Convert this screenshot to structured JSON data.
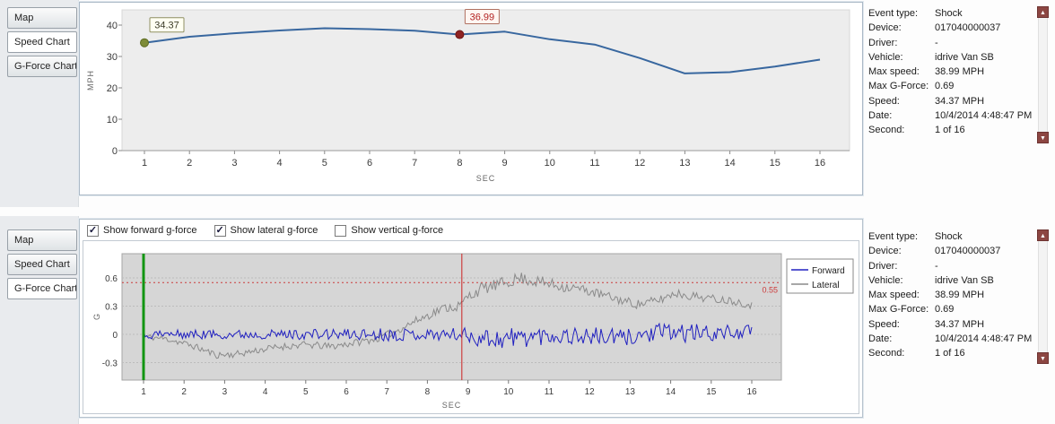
{
  "icons": {
    "up": "▲",
    "down": "▼",
    "check": "✓"
  },
  "tabs": {
    "map": "Map",
    "speed": "Speed Chart",
    "gforce": "G-Force Chart"
  },
  "checkboxes": {
    "forward": {
      "label": "Show forward g-force",
      "checked": true
    },
    "lateral": {
      "label": "Show lateral g-force",
      "checked": true
    },
    "vertical": {
      "label": "Show vertical g-force",
      "checked": false
    }
  },
  "info": {
    "rows": [
      {
        "label": "Event type:",
        "value": "Shock"
      },
      {
        "label": "Device:",
        "value": "017040000037"
      },
      {
        "label": "Driver:",
        "value": "-"
      },
      {
        "label": "Vehicle:",
        "value": "idrive Van SB"
      },
      {
        "label": "Max speed:",
        "value": "38.99 MPH"
      },
      {
        "label": "Max G-Force:",
        "value": "0.69"
      },
      {
        "label": "Speed:",
        "value": "34.37 MPH"
      },
      {
        "label": "Date:",
        "value": "10/4/2014 4:48:47 PM"
      },
      {
        "label": "Second:",
        "value": "1 of 16"
      }
    ]
  },
  "chart_data": [
    {
      "type": "line",
      "title": "Speed Chart",
      "xlabel": "SEC",
      "ylabel": "MPH",
      "x": [
        1,
        2,
        3,
        4,
        5,
        6,
        7,
        8,
        9,
        10,
        11,
        12,
        13,
        14,
        15,
        16
      ],
      "values": [
        34.37,
        36.3,
        37.4,
        38.3,
        38.99,
        38.7,
        38.2,
        36.99,
        37.9,
        35.5,
        33.8,
        29.5,
        24.6,
        25.0,
        26.8,
        29.0
      ],
      "yticks": [
        0,
        10,
        20,
        30,
        40
      ],
      "ylim": [
        0,
        45
      ],
      "line_color": "#38679f",
      "markers": [
        {
          "x": 1,
          "value": 34.37,
          "label": "34.37",
          "dot_color": "#7d8b37",
          "dot_stroke": "#5d6b22",
          "box_fill": "#fffff2",
          "box_border": "#8f8f62",
          "label_color": "#3c3c28"
        },
        {
          "x": 8,
          "value": 36.99,
          "label": "36.99",
          "dot_color": "#8e2323",
          "dot_stroke": "#6e1515",
          "box_fill": "#fff6f2",
          "box_border": "#b07060",
          "label_color": "#b22222"
        }
      ]
    },
    {
      "type": "line",
      "title": "G-Force Chart",
      "xlabel": "SEC",
      "ylabel": "G",
      "xticks": [
        1,
        2,
        3,
        4,
        5,
        6,
        7,
        8,
        9,
        10,
        11,
        12,
        13,
        14,
        15,
        16
      ],
      "yticks": [
        -0.3,
        0,
        0.3,
        0.6
      ],
      "ylim": [
        -0.48,
        0.82
      ],
      "threshold": {
        "value": 0.55,
        "label": "0.55",
        "color": "#cc3b3b"
      },
      "event_lines": [
        {
          "name": "event-start-line",
          "x": 1,
          "color": "#129512",
          "width": 3
        },
        {
          "name": "event-shock-line",
          "x": 8.85,
          "color": "#cc2222",
          "width": 1
        }
      ],
      "legend_position": "right",
      "noise_seed": 11,
      "series": [
        {
          "name": "Forward",
          "color": "#2020c0",
          "mean": [
            [
              1,
              0
            ],
            [
              8.8,
              0
            ],
            [
              9.3,
              -0.03
            ],
            [
              9.8,
              -0.05
            ],
            [
              10.3,
              -0.03
            ],
            [
              11,
              -0.01
            ],
            [
              12,
              -0.02
            ],
            [
              12.8,
              -0.04
            ],
            [
              13.4,
              0
            ],
            [
              14,
              0.02
            ],
            [
              15,
              0.01
            ],
            [
              16,
              0.03
            ]
          ],
          "amp": [
            [
              1,
              0.05
            ],
            [
              4,
              0.05
            ],
            [
              6,
              0.06
            ],
            [
              7,
              0.07
            ],
            [
              8,
              0.06
            ],
            [
              8.8,
              0.07
            ],
            [
              9.2,
              0.1
            ],
            [
              10,
              0.12
            ],
            [
              10.8,
              0.1
            ],
            [
              11.6,
              0.09
            ],
            [
              12.4,
              0.1
            ],
            [
              13.2,
              0.09
            ],
            [
              14,
              0.11
            ],
            [
              14.8,
              0.09
            ],
            [
              15.4,
              0.08
            ],
            [
              16,
              0.07
            ]
          ]
        },
        {
          "name": "Lateral",
          "color": "#8a8a8a",
          "mean": [
            [
              1,
              -0.02
            ],
            [
              1.6,
              -0.05
            ],
            [
              2.2,
              -0.12
            ],
            [
              2.8,
              -0.22
            ],
            [
              3.3,
              -0.21
            ],
            [
              3.8,
              -0.17
            ],
            [
              4.4,
              -0.13
            ],
            [
              5,
              -0.11
            ],
            [
              5.6,
              -0.13
            ],
            [
              6.2,
              -0.09
            ],
            [
              6.8,
              -0.04
            ],
            [
              7.2,
              0.03
            ],
            [
              7.6,
              0.12
            ],
            [
              8,
              0.2
            ],
            [
              8.4,
              0.28
            ],
            [
              8.8,
              0.3
            ],
            [
              9,
              0.4
            ],
            [
              9.3,
              0.48
            ],
            [
              9.7,
              0.52
            ],
            [
              10,
              0.56
            ],
            [
              10.3,
              0.6
            ],
            [
              10.7,
              0.56
            ],
            [
              11.2,
              0.52
            ],
            [
              11.8,
              0.48
            ],
            [
              12.3,
              0.42
            ],
            [
              12.8,
              0.36
            ],
            [
              13.2,
              0.32
            ],
            [
              13.7,
              0.36
            ],
            [
              14.1,
              0.44
            ],
            [
              14.5,
              0.41
            ],
            [
              15,
              0.38
            ],
            [
              15.5,
              0.36
            ],
            [
              16,
              0.31
            ]
          ],
          "amp": [
            [
              1,
              0.035
            ],
            [
              7,
              0.04
            ],
            [
              8.5,
              0.05
            ],
            [
              9,
              0.065
            ],
            [
              11,
              0.065
            ],
            [
              12,
              0.05
            ],
            [
              14,
              0.05
            ],
            [
              16,
              0.04
            ]
          ]
        }
      ]
    }
  ]
}
